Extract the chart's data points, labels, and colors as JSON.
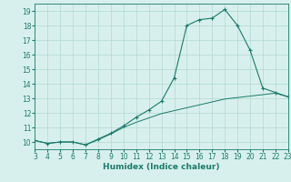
{
  "xlabel": "Humidex (Indice chaleur)",
  "x_main": [
    3,
    4,
    5,
    6,
    7,
    8,
    9,
    10,
    11,
    12,
    13,
    14,
    15,
    16,
    17,
    18,
    19,
    20,
    21,
    22,
    23
  ],
  "y_main": [
    10.1,
    9.9,
    10.0,
    10.0,
    9.8,
    10.2,
    10.6,
    11.1,
    11.7,
    12.2,
    12.8,
    14.4,
    18.0,
    18.4,
    18.5,
    19.1,
    18.0,
    16.3,
    13.7,
    13.4,
    13.1
  ],
  "x_trend": [
    3,
    4,
    5,
    6,
    7,
    8,
    9,
    10,
    11,
    12,
    13,
    14,
    15,
    16,
    17,
    18,
    19,
    20,
    21,
    22,
    23
  ],
  "y_trend": [
    10.1,
    9.9,
    10.0,
    10.0,
    9.8,
    10.15,
    10.55,
    11.0,
    11.35,
    11.65,
    11.95,
    12.15,
    12.35,
    12.55,
    12.75,
    12.95,
    13.05,
    13.15,
    13.25,
    13.35,
    13.1
  ],
  "line_color": "#1a7a6a",
  "bg_color": "#d8f0ed",
  "grid_color": "#b0d8d0",
  "xlim": [
    3,
    23
  ],
  "ylim": [
    9.5,
    19.5
  ],
  "yticks": [
    10,
    11,
    12,
    13,
    14,
    15,
    16,
    17,
    18,
    19
  ],
  "xticks": [
    3,
    4,
    5,
    6,
    7,
    8,
    9,
    10,
    11,
    12,
    13,
    14,
    15,
    16,
    17,
    18,
    19,
    20,
    21,
    22,
    23
  ],
  "tick_fontsize": 5.5,
  "xlabel_fontsize": 6.5
}
